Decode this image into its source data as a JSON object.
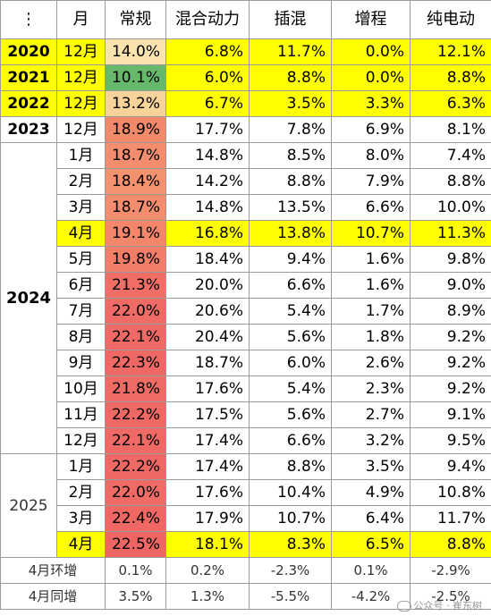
{
  "headers": [
    "⋮",
    "月",
    "常规",
    "混合动力",
    "插混",
    "增程",
    "纯电动"
  ],
  "rows": [
    {
      "year": "2020",
      "month": "12月",
      "regular": "14.0%",
      "hybrid": "6.8%",
      "phev": "11.7%",
      "erev": "0.0%",
      "bev": "12.1%",
      "highlight": true,
      "regular_color": "#fbe3b0"
    },
    {
      "year": "2021",
      "month": "12月",
      "regular": "10.1%",
      "hybrid": "6.0%",
      "phev": "8.8%",
      "erev": "0.0%",
      "bev": "8.8%",
      "highlight": true,
      "regular_color": "#66b96a"
    },
    {
      "year": "2022",
      "month": "12月",
      "regular": "13.2%",
      "hybrid": "6.7%",
      "phev": "3.5%",
      "erev": "3.3%",
      "bev": "6.3%",
      "highlight": true,
      "regular_color": "#f7d39a"
    },
    {
      "year": "2023",
      "month": "12月",
      "regular": "18.9%",
      "hybrid": "17.7%",
      "phev": "7.8%",
      "erev": "6.9%",
      "bev": "8.1%",
      "highlight": false,
      "regular_color": "#f3896b"
    },
    {
      "year": "",
      "month": "1月",
      "regular": "18.7%",
      "hybrid": "14.8%",
      "phev": "8.5%",
      "erev": "8.0%",
      "bev": "7.4%",
      "highlight": false,
      "regular_color": "#f38d6d"
    },
    {
      "year": "",
      "month": "2月",
      "regular": "18.4%",
      "hybrid": "14.2%",
      "phev": "8.8%",
      "erev": "7.9%",
      "bev": "8.8%",
      "highlight": false,
      "regular_color": "#f49270"
    },
    {
      "year": "",
      "month": "3月",
      "regular": "18.7%",
      "hybrid": "14.8%",
      "phev": "13.5%",
      "erev": "6.6%",
      "bev": "10.0%",
      "highlight": false,
      "regular_color": "#f38d6d"
    },
    {
      "year": "",
      "month": "4月",
      "regular": "19.1%",
      "hybrid": "16.8%",
      "phev": "13.8%",
      "erev": "10.7%",
      "bev": "11.3%",
      "highlight": true,
      "regular_color": "#f3866b"
    },
    {
      "year": "",
      "month": "5月",
      "regular": "19.8%",
      "hybrid": "18.4%",
      "phev": "9.4%",
      "erev": "1.6%",
      "bev": "9.8%",
      "highlight": false,
      "regular_color": "#f27d68"
    },
    {
      "year": "",
      "month": "6月",
      "regular": "21.3%",
      "hybrid": "20.0%",
      "phev": "6.6%",
      "erev": "1.6%",
      "bev": "9.0%",
      "highlight": false,
      "regular_color": "#f06e66"
    },
    {
      "year": "",
      "month": "7月",
      "regular": "22.0%",
      "hybrid": "20.6%",
      "phev": "5.4%",
      "erev": "1.7%",
      "bev": "8.9%",
      "highlight": false,
      "regular_color": "#ef6b65"
    },
    {
      "year": "",
      "month": "8月",
      "regular": "22.1%",
      "hybrid": "20.4%",
      "phev": "5.6%",
      "erev": "1.8%",
      "bev": "9.2%",
      "highlight": false,
      "regular_color": "#ef6a65"
    },
    {
      "year": "",
      "month": "9月",
      "regular": "22.3%",
      "hybrid": "18.7%",
      "phev": "6.0%",
      "erev": "2.6%",
      "bev": "9.2%",
      "highlight": false,
      "regular_color": "#ef6964"
    },
    {
      "year": "",
      "month": "10月",
      "regular": "21.8%",
      "hybrid": "17.6%",
      "phev": "5.4%",
      "erev": "2.3%",
      "bev": "9.2%",
      "highlight": false,
      "regular_color": "#ef6c65"
    },
    {
      "year": "",
      "month": "11月",
      "regular": "22.2%",
      "hybrid": "17.5%",
      "phev": "5.6%",
      "erev": "2.7%",
      "bev": "9.1%",
      "highlight": false,
      "regular_color": "#ef6964"
    },
    {
      "year": "",
      "month": "12月",
      "regular": "22.1%",
      "hybrid": "17.4%",
      "phev": "6.6%",
      "erev": "3.2%",
      "bev": "9.5%",
      "highlight": false,
      "regular_color": "#ef6a65"
    },
    {
      "year": "",
      "month": "1月",
      "regular": "22.2%",
      "hybrid": "17.4%",
      "phev": "8.8%",
      "erev": "3.5%",
      "bev": "9.4%",
      "highlight": false,
      "regular_color": "#ef6964"
    },
    {
      "year": "",
      "month": "2月",
      "regular": "22.0%",
      "hybrid": "17.6%",
      "phev": "10.4%",
      "erev": "4.9%",
      "bev": "10.8%",
      "highlight": false,
      "regular_color": "#ef6b65"
    },
    {
      "year": "",
      "month": "3月",
      "regular": "22.4%",
      "hybrid": "17.9%",
      "phev": "10.7%",
      "erev": "6.4%",
      "bev": "11.7%",
      "highlight": false,
      "regular_color": "#ef6864"
    },
    {
      "year": "",
      "month": "4月",
      "regular": "22.5%",
      "hybrid": "18.1%",
      "phev": "8.3%",
      "erev": "6.5%",
      "bev": "8.8%",
      "highlight": true,
      "regular_color": "#ee6663"
    }
  ],
  "group_years": {
    "y2024": "2024",
    "y2025": "2025"
  },
  "footer": [
    {
      "label": "4月环增",
      "regular": "0.1%",
      "hybrid": "0.2%",
      "phev": "-2.3%",
      "erev": "0.1%",
      "bev": "-2.9%"
    },
    {
      "label": "4月同增",
      "regular": "3.5%",
      "hybrid": "1.3%",
      "phev": "-5.5%",
      "erev": "-4.2%",
      "bev": "-2.5%"
    }
  ],
  "watermark": "公众号 · 崔东树",
  "colors": {
    "highlight": "#ffff00",
    "border": "#9a9a9a"
  }
}
